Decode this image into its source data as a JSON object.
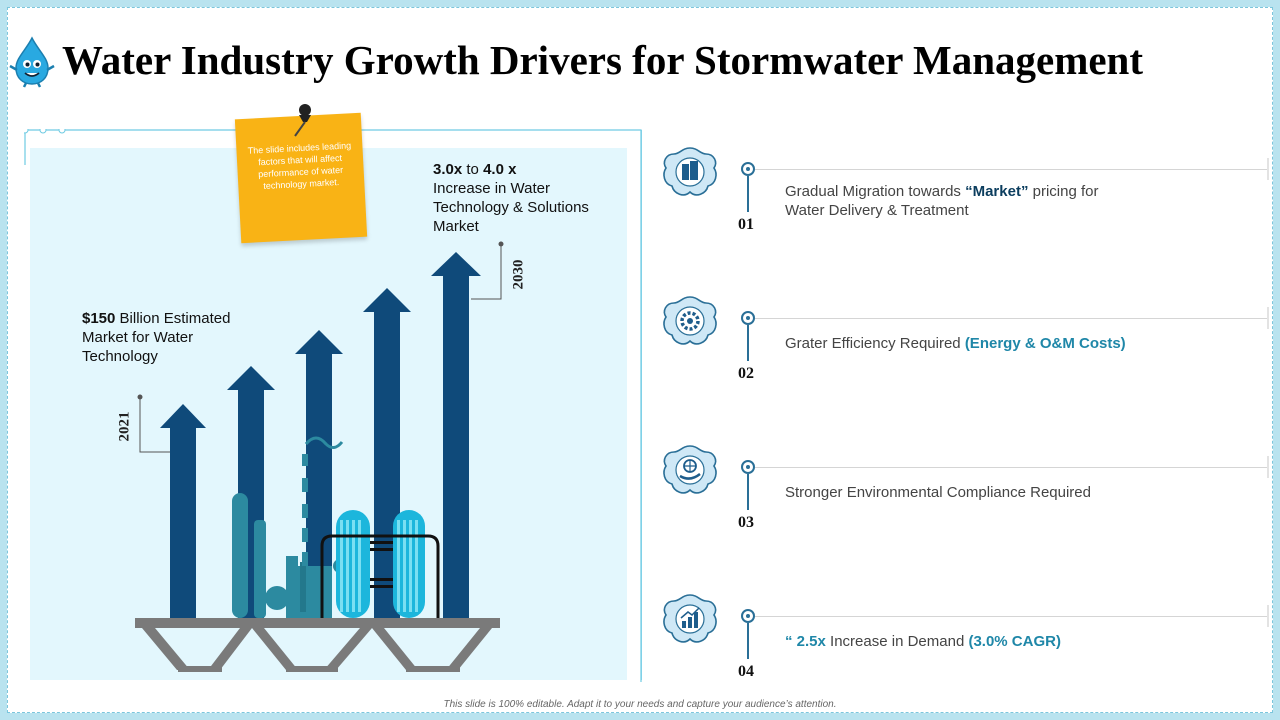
{
  "title": "Water Industry Growth Drivers for Stormwater Management",
  "sticky_note": "The slide includes leading factors that will affect performance of water technology market.",
  "annotation_2030": {
    "value_low": "3.0x",
    "connector": "to",
    "value_high": "4.0 x",
    "text": "Increase in Water Technology & Solutions Market",
    "year": "2030"
  },
  "annotation_2021": {
    "value": "$150",
    "text": "Billion Estimated Market for Water Technology",
    "year": "2021"
  },
  "drivers": [
    {
      "number": "01",
      "icon": "building-icon",
      "text_a": "Gradual Migration towards ",
      "highlight": "“Market”",
      "text_b": " pricing for Water Delivery & Treatment"
    },
    {
      "number": "02",
      "icon": "gear-icon",
      "text_a": "Grater Efficiency Required ",
      "highlight": "(Energy & O&M Costs)"
    },
    {
      "number": "03",
      "icon": "globe-hand-icon",
      "text_a": "Stronger Environmental Compliance Required"
    },
    {
      "number": "04",
      "icon": "bar-chart-icon",
      "quote": "“ 2.5x",
      "text_a": " Increase in Demand ",
      "highlight": "(3.0% CAGR)"
    }
  ],
  "footer": "This slide is 100% editable. Adapt it to your needs and capture your audience’s attention.",
  "colors": {
    "accent_dark": "#0b3d5e",
    "accent_teal": "#1f87a8",
    "arrow": "#0f4a7a",
    "panel": "#e3f7fd",
    "sticky": "#f9b315"
  }
}
